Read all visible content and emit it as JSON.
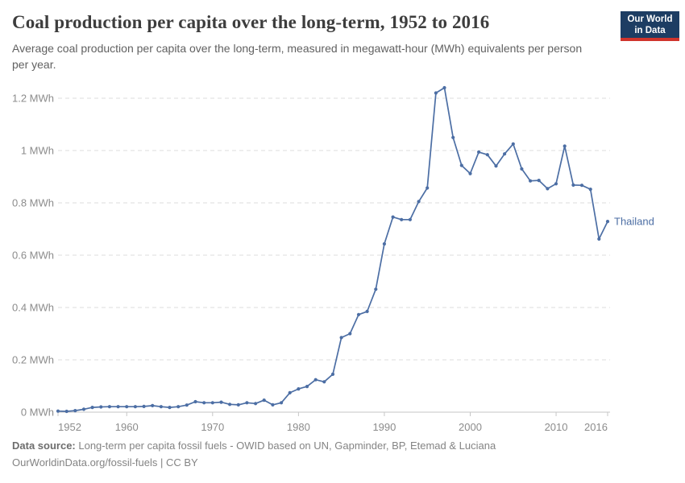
{
  "header": {
    "title": "Coal production per capita over the long-term, 1952 to 2016",
    "subtitle": "Average coal production per capita over the long-term, measured in megawatt-hour (MWh) equivalents per person per year."
  },
  "logo": {
    "line1": "Our World",
    "line2": "in Data",
    "bg_color": "#1d3d63",
    "accent_color": "#d0342c"
  },
  "chart_data": {
    "type": "line",
    "title": "Coal production per capita over the long-term, 1952 to 2016",
    "xlabel": "",
    "ylabel": "",
    "unit": "MWh",
    "xlim": [
      1952,
      2016.5
    ],
    "ylim": [
      0,
      1.28
    ],
    "grid": "horizontal-dashed",
    "legend": "end-of-line-label",
    "x_ticks": [
      1952,
      1960,
      1970,
      1980,
      1990,
      2000,
      2010,
      2016
    ],
    "y_ticks": [
      {
        "value": 0,
        "label": "0 MWh"
      },
      {
        "value": 0.2,
        "label": "0.2 MWh"
      },
      {
        "value": 0.4,
        "label": "0.4 MWh"
      },
      {
        "value": 0.6,
        "label": "0.6 MWh"
      },
      {
        "value": 0.8,
        "label": "0.8 MWh"
      },
      {
        "value": 1,
        "label": "1 MWh"
      },
      {
        "value": 1.2,
        "label": "1.2 MWh"
      }
    ],
    "series": [
      {
        "name": "Thailand",
        "color": "#4c6ea4",
        "x": [
          1952,
          1953,
          1954,
          1955,
          1956,
          1957,
          1958,
          1959,
          1960,
          1961,
          1962,
          1963,
          1964,
          1965,
          1966,
          1967,
          1968,
          1969,
          1970,
          1971,
          1972,
          1973,
          1974,
          1975,
          1976,
          1977,
          1978,
          1979,
          1980,
          1981,
          1982,
          1983,
          1984,
          1985,
          1986,
          1987,
          1988,
          1989,
          1990,
          1991,
          1992,
          1993,
          1994,
          1995,
          1996,
          1997,
          1998,
          1999,
          2000,
          2001,
          2002,
          2003,
          2004,
          2005,
          2006,
          2007,
          2008,
          2009,
          2010,
          2011,
          2012,
          2013,
          2014,
          2015,
          2016
        ],
        "y": [
          0.004,
          0.003,
          0.006,
          0.011,
          0.018,
          0.02,
          0.021,
          0.021,
          0.021,
          0.021,
          0.022,
          0.025,
          0.021,
          0.018,
          0.021,
          0.027,
          0.04,
          0.036,
          0.036,
          0.038,
          0.03,
          0.028,
          0.036,
          0.033,
          0.046,
          0.028,
          0.036,
          0.074,
          0.089,
          0.098,
          0.124,
          0.116,
          0.145,
          0.285,
          0.3,
          0.373,
          0.385,
          0.47,
          0.643,
          0.746,
          0.736,
          0.736,
          0.805,
          0.857,
          1.22,
          1.24,
          1.05,
          0.943,
          0.912,
          0.994,
          0.984,
          0.941,
          0.987,
          1.025,
          0.93,
          0.884,
          0.886,
          0.854,
          0.873,
          1.017,
          0.868,
          0.867,
          0.852,
          0.662,
          0.729
        ]
      }
    ]
  },
  "footer": {
    "source_label": "Data source:",
    "source_text": " Long-term per capita fossil fuels - OWID based on UN, Gapminder, BP, Etemad & Luciana",
    "link_line": "OurWorldinData.org/fossil-fuels | CC BY"
  }
}
